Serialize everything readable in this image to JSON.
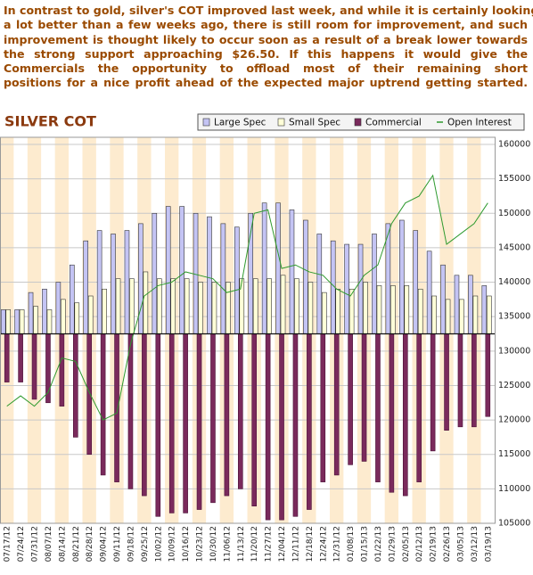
{
  "text_lines": [
    "In contrast to gold, silver's COT improved last week, and while it is certainly looking",
    "a lot better than a few weeks ago, there is still room for improvement, and such",
    "improvement is thought likely to occur soon as a result of a break lower towards",
    "the strong support approaching $26.50. If this happens it would give the",
    "Commercials the opportunity to offload most of their remaining short",
    "positions  for a nice profit ahead of the expected major uptrend getting started."
  ],
  "chart_data": {
    "type": "bar",
    "title": "SILVER COT",
    "categories": [
      "07/17/12",
      "07/24/12",
      "07/31/12",
      "08/07/12",
      "08/14/12",
      "08/21/12",
      "08/28/12",
      "09/04/12",
      "09/11/12",
      "09/18/12",
      "09/25/12",
      "10/02/12",
      "10/09/12",
      "10/16/12",
      "10/23/12",
      "10/30/12",
      "11/06/12",
      "11/13/12",
      "11/20/12",
      "11/27/12",
      "12/04/12",
      "12/11/12",
      "12/18/12",
      "12/24/12",
      "12/31/12",
      "01/08/13",
      "01/15/13",
      "01/22/13",
      "01/29/13",
      "02/05/13",
      "02/12/13",
      "02/19/13",
      "02/26/13",
      "03/05/13",
      "03/12/13",
      "03/19/13"
    ],
    "bar_base": 132500,
    "series": [
      {
        "name": "Large Spec",
        "color": "#c4c4f4",
        "values": [
          136000,
          136000,
          138500,
          139000,
          140000,
          142500,
          146000,
          147500,
          147000,
          147500,
          148500,
          150000,
          151000,
          151000,
          150000,
          149500,
          148500,
          148000,
          150000,
          151500,
          151500,
          150500,
          149000,
          147000,
          146000,
          145500,
          145500,
          147000,
          148500,
          149000,
          147500,
          144500,
          142500,
          141000,
          141000,
          139500
        ]
      },
      {
        "name": "Small Spec",
        "color": "#ffffd8",
        "values": [
          136000,
          136000,
          136500,
          136000,
          137500,
          137000,
          138000,
          139000,
          140500,
          140500,
          141500,
          140500,
          140500,
          140500,
          140000,
          140000,
          140000,
          140500,
          140500,
          140500,
          141000,
          140500,
          140000,
          138500,
          139000,
          139000,
          140000,
          139500,
          139500,
          139500,
          139000,
          138000,
          137500,
          137500,
          138000,
          138000
        ]
      },
      {
        "name": "Commercial",
        "color": "#7a2a5c",
        "values": [
          125500,
          125500,
          123000,
          122500,
          122000,
          117500,
          115000,
          112000,
          111000,
          110000,
          109000,
          106000,
          106500,
          106500,
          107000,
          108000,
          109000,
          110000,
          107500,
          105500,
          105500,
          106000,
          107000,
          111000,
          112000,
          113500,
          114000,
          111000,
          109500,
          109000,
          111000,
          115500,
          118500,
          119000,
          119000,
          120500
        ]
      },
      {
        "name": "Open Interest",
        "color": "#2e9a2e",
        "type": "line",
        "values": [
          122000,
          123500,
          122000,
          124000,
          129000,
          128500,
          124000,
          120000,
          121000,
          131000,
          138000,
          139500,
          140000,
          141500,
          141000,
          140500,
          138500,
          139000,
          150000,
          150500,
          142000,
          142500,
          141500,
          141000,
          139000,
          138000,
          141000,
          142500,
          148500,
          151500,
          152500,
          155500,
          145500,
          147000,
          148500,
          151500
        ]
      }
    ],
    "ylim": [
      105000,
      160000
    ],
    "yticks": [
      105000,
      110000,
      115000,
      120000,
      125000,
      130000,
      135000,
      140000,
      145000,
      150000,
      155000,
      160000
    ],
    "grid": true,
    "legend": "top-right"
  }
}
